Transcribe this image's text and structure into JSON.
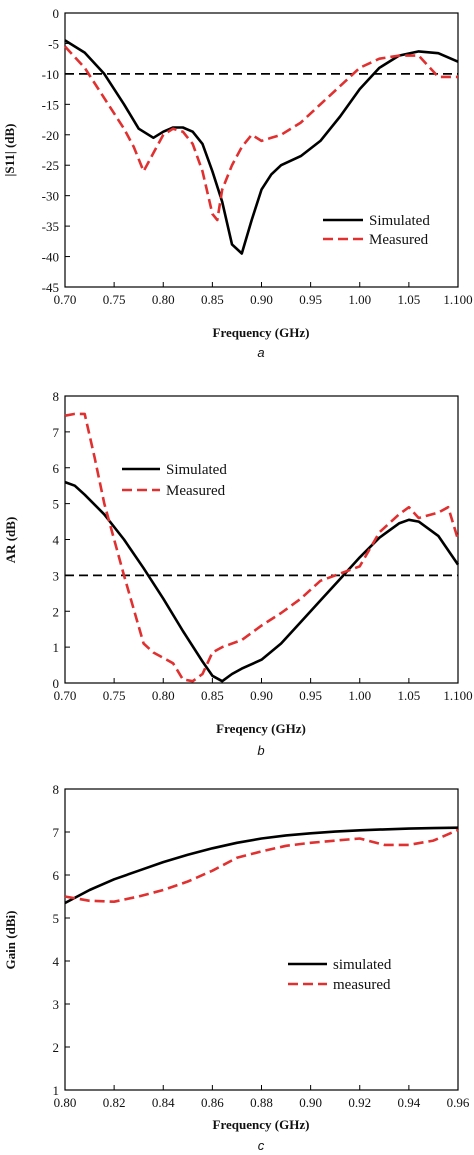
{
  "colors": {
    "simulated": "#000000",
    "measured": "#e03030",
    "reference": "#000000"
  },
  "chart_data": [
    {
      "id": "a",
      "type": "line",
      "subplot_label": "a",
      "xlabel": "Frequency (GHz)",
      "ylabel": "|S11| (dB)",
      "xlim": [
        0.7,
        1.1
      ],
      "ylim": [
        -45,
        0
      ],
      "xticks": [
        0.7,
        0.75,
        0.8,
        0.85,
        0.9,
        0.95,
        1.0,
        1.05,
        1.1
      ],
      "xtick_labels": [
        "0.70",
        "0.75",
        "0.80",
        "0.85",
        "0.90",
        "0.95",
        "1.00",
        "1.05",
        "1.100"
      ],
      "yticks": [
        0,
        -5,
        -10,
        -15,
        -20,
        -25,
        -30,
        -35,
        -40,
        -45
      ],
      "ytick_labels": [
        "0",
        "-5",
        "-10",
        "-15",
        "-20",
        "-25",
        "-30",
        "-35",
        "-40",
        "-45"
      ],
      "reference_line": -10,
      "legend": {
        "position": "lower-right",
        "entries": [
          "Simulated",
          "Measured"
        ]
      },
      "series": [
        {
          "name": "Simulated",
          "style": "solid",
          "x": [
            0.7,
            0.72,
            0.74,
            0.76,
            0.775,
            0.79,
            0.8,
            0.81,
            0.82,
            0.83,
            0.84,
            0.85,
            0.86,
            0.87,
            0.88,
            0.89,
            0.9,
            0.91,
            0.92,
            0.94,
            0.96,
            0.98,
            1.0,
            1.02,
            1.04,
            1.06,
            1.08,
            1.1
          ],
          "y": [
            -4.5,
            -6.5,
            -10,
            -15,
            -19,
            -20.5,
            -19.5,
            -18.8,
            -18.8,
            -19.5,
            -21.5,
            -26,
            -31,
            -38,
            -39.5,
            -34,
            -29,
            -26.5,
            -25,
            -23.5,
            -21,
            -17,
            -12.5,
            -9,
            -7,
            -6.3,
            -6.6,
            -8
          ]
        },
        {
          "name": "Measured",
          "style": "dashed",
          "x": [
            0.7,
            0.72,
            0.74,
            0.76,
            0.77,
            0.78,
            0.79,
            0.8,
            0.81,
            0.82,
            0.83,
            0.84,
            0.85,
            0.855,
            0.86,
            0.87,
            0.88,
            0.89,
            0.9,
            0.91,
            0.92,
            0.94,
            0.96,
            0.98,
            1.0,
            1.02,
            1.04,
            1.06,
            1.08,
            1.1
          ],
          "y": [
            -5.5,
            -9,
            -14,
            -19,
            -22,
            -26,
            -23,
            -20,
            -19,
            -19.5,
            -21.5,
            -26,
            -33,
            -34,
            -29,
            -25,
            -22,
            -20,
            -21,
            -20.5,
            -20,
            -18,
            -15,
            -12,
            -9,
            -7.5,
            -7,
            -7,
            -10.5,
            -10.5
          ]
        }
      ]
    },
    {
      "id": "b",
      "type": "line",
      "subplot_label": "b",
      "xlabel": "Freqency (GHz)",
      "ylabel": "AR (dB)",
      "xlim": [
        0.7,
        1.1
      ],
      "ylim": [
        0,
        8
      ],
      "xticks": [
        0.7,
        0.75,
        0.8,
        0.85,
        0.9,
        0.95,
        1.0,
        1.05,
        1.1
      ],
      "xtick_labels": [
        "0.70",
        "0.75",
        "0.80",
        "0.85",
        "0.90",
        "0.95",
        "1.00",
        "1.05",
        "1.100"
      ],
      "yticks": [
        0,
        1,
        2,
        3,
        4,
        5,
        6,
        7,
        8
      ],
      "ytick_labels": [
        "0",
        "1",
        "2",
        "3",
        "4",
        "5",
        "6",
        "7",
        "8"
      ],
      "reference_line": 3,
      "legend": {
        "position": "upper-center",
        "entries": [
          "Simulated",
          "Measured"
        ]
      },
      "series": [
        {
          "name": "Simulated",
          "style": "solid",
          "x": [
            0.7,
            0.71,
            0.72,
            0.74,
            0.76,
            0.78,
            0.8,
            0.82,
            0.84,
            0.85,
            0.86,
            0.87,
            0.88,
            0.9,
            0.92,
            0.94,
            0.96,
            0.98,
            1.0,
            1.02,
            1.04,
            1.05,
            1.06,
            1.08,
            1.1
          ],
          "y": [
            5.6,
            5.5,
            5.25,
            4.7,
            4.0,
            3.2,
            2.35,
            1.45,
            0.6,
            0.2,
            0.05,
            0.25,
            0.4,
            0.65,
            1.1,
            1.7,
            2.3,
            2.9,
            3.5,
            4.05,
            4.45,
            4.55,
            4.5,
            4.1,
            3.3
          ]
        },
        {
          "name": "Measured",
          "style": "dashed",
          "x": [
            0.7,
            0.71,
            0.72,
            0.73,
            0.74,
            0.76,
            0.78,
            0.79,
            0.8,
            0.81,
            0.82,
            0.83,
            0.84,
            0.85,
            0.86,
            0.88,
            0.9,
            0.92,
            0.94,
            0.96,
            0.98,
            1.0,
            1.02,
            1.04,
            1.05,
            1.06,
            1.08,
            1.09,
            1.1
          ],
          "y": [
            7.45,
            7.5,
            7.5,
            6.3,
            5.0,
            3.0,
            1.1,
            0.85,
            0.7,
            0.55,
            0.1,
            0.05,
            0.25,
            0.85,
            1.0,
            1.2,
            1.6,
            1.95,
            2.35,
            2.85,
            3.05,
            3.25,
            4.2,
            4.7,
            4.9,
            4.6,
            4.75,
            4.9,
            4.0
          ]
        }
      ]
    },
    {
      "id": "c",
      "type": "line",
      "subplot_label": "c",
      "xlabel": "Frequency (GHz)",
      "ylabel": "Gain (dBi)",
      "xlim": [
        0.8,
        0.96
      ],
      "ylim": [
        1,
        8
      ],
      "xticks": [
        0.8,
        0.82,
        0.84,
        0.86,
        0.88,
        0.9,
        0.92,
        0.94,
        0.96
      ],
      "xtick_labels": [
        "0.80",
        "0.82",
        "0.84",
        "0.86",
        "0.88",
        "0.90",
        "0.92",
        "0.94",
        "0.96"
      ],
      "yticks": [
        1,
        2,
        3,
        4,
        5,
        6,
        7,
        8
      ],
      "ytick_labels": [
        "1",
        "2",
        "3",
        "4",
        "5",
        "6",
        "7",
        "8"
      ],
      "reference_line": null,
      "legend": {
        "position": "center-right",
        "entries": [
          "simulated",
          "measured"
        ]
      },
      "series": [
        {
          "name": "simulated",
          "style": "solid",
          "x": [
            0.8,
            0.81,
            0.82,
            0.83,
            0.84,
            0.85,
            0.86,
            0.87,
            0.88,
            0.89,
            0.9,
            0.91,
            0.92,
            0.93,
            0.94,
            0.95,
            0.96
          ],
          "y": [
            5.35,
            5.65,
            5.9,
            6.1,
            6.3,
            6.47,
            6.62,
            6.75,
            6.85,
            6.92,
            6.97,
            7.01,
            7.04,
            7.06,
            7.08,
            7.09,
            7.1
          ]
        },
        {
          "name": "measured",
          "style": "dashed",
          "x": [
            0.8,
            0.81,
            0.82,
            0.83,
            0.84,
            0.85,
            0.86,
            0.87,
            0.88,
            0.89,
            0.9,
            0.91,
            0.92,
            0.93,
            0.94,
            0.95,
            0.96
          ],
          "y": [
            5.5,
            5.4,
            5.38,
            5.5,
            5.65,
            5.85,
            6.1,
            6.4,
            6.55,
            6.68,
            6.75,
            6.8,
            6.85,
            6.7,
            6.7,
            6.8,
            7.05
          ]
        }
      ]
    }
  ]
}
